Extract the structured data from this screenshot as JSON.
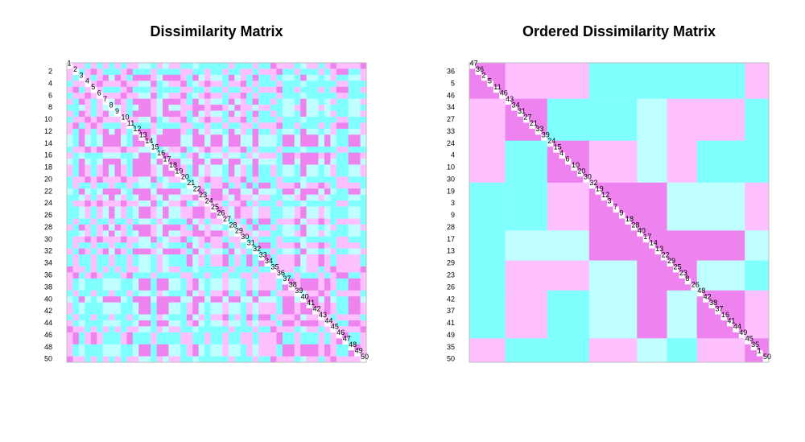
{
  "chart_data": [
    {
      "type": "heatmap",
      "title": "Dissimilarity Matrix",
      "labels": [
        1,
        2,
        3,
        4,
        5,
        6,
        7,
        8,
        9,
        10,
        11,
        12,
        13,
        14,
        15,
        16,
        17,
        18,
        19,
        20,
        21,
        22,
        23,
        24,
        25,
        26,
        27,
        28,
        29,
        30,
        31,
        32,
        33,
        34,
        35,
        36,
        37,
        38,
        39,
        40,
        41,
        42,
        43,
        44,
        45,
        46,
        47,
        48,
        49,
        50
      ]
    },
    {
      "type": "heatmap",
      "title": "Ordered Dissimilarity Matrix",
      "labels": [
        47,
        36,
        2,
        5,
        11,
        46,
        43,
        34,
        31,
        27,
        21,
        33,
        39,
        24,
        15,
        4,
        6,
        10,
        20,
        30,
        32,
        19,
        12,
        3,
        7,
        9,
        18,
        28,
        40,
        17,
        14,
        13,
        22,
        29,
        25,
        23,
        8,
        26,
        48,
        42,
        38,
        37,
        16,
        41,
        44,
        49,
        45,
        35,
        1,
        50
      ],
      "group_sizes": [
        6,
        7,
        7,
        8,
        5,
        5,
        8,
        4
      ],
      "block_levels": [
        [
          1,
          2,
          2,
          4,
          4,
          4,
          4,
          2
        ],
        [
          2,
          1,
          4,
          4,
          3,
          2,
          2,
          4
        ],
        [
          2,
          4,
          1,
          2,
          3,
          2,
          4,
          4
        ],
        [
          4,
          4,
          2,
          1,
          1,
          3,
          3,
          2
        ],
        [
          4,
          3,
          3,
          1,
          1,
          1,
          1,
          3
        ],
        [
          4,
          2,
          2,
          3,
          1,
          1,
          3,
          4
        ],
        [
          4,
          2,
          4,
          3,
          1,
          3,
          1,
          2
        ],
        [
          2,
          4,
          4,
          2,
          3,
          4,
          2,
          1
        ]
      ],
      "colors": [
        "#ee82ee",
        "#ffc0ff",
        "#c0ffff",
        "#80ffff"
      ]
    }
  ]
}
